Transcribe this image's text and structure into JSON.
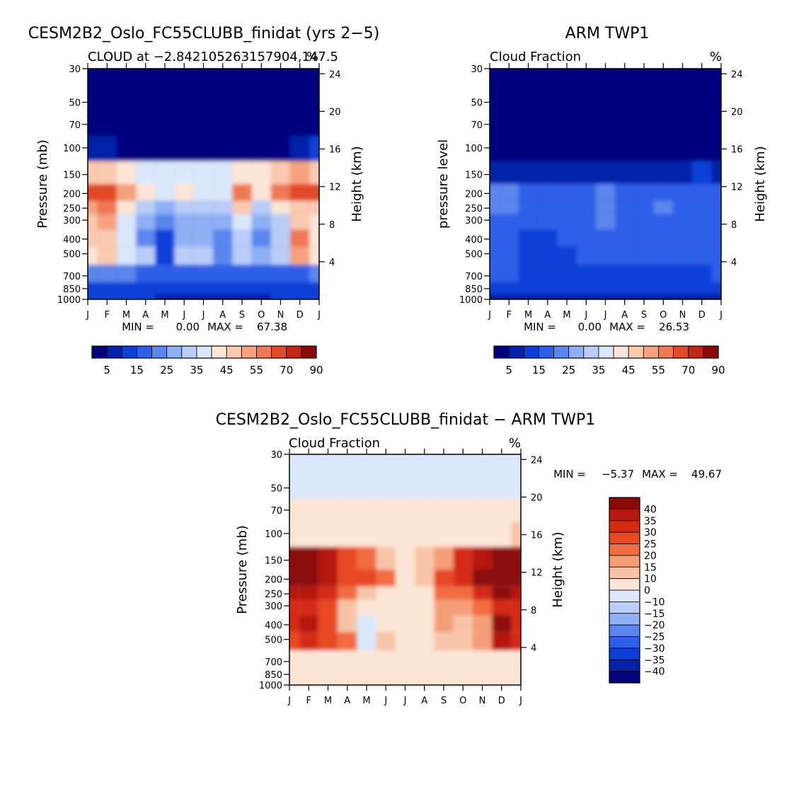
{
  "figure_title": "",
  "colorbar_fill_ticks": [
    "5",
    "15",
    "25",
    "35",
    "45",
    "55",
    "70",
    "90"
  ],
  "colorbar_diff_ticks": [
    "40",
    "35",
    "30",
    "25",
    "20",
    "15",
    "10",
    "0",
    "−10",
    "−15",
    "−20",
    "−25",
    "−30",
    "−35",
    "−40"
  ],
  "colors": {
    "fill_palette": [
      "#00007f",
      "#0021a8",
      "#0a3fd8",
      "#2d5fe8",
      "#5a86ee",
      "#8fb0f4",
      "#b9cdf8",
      "#dbe8fb",
      "#fde6d6",
      "#fbc9b0",
      "#f6a27e",
      "#f07852",
      "#e24a28",
      "#c42812",
      "#8b0a07"
    ],
    "diff_palette": [
      "#8b0a07",
      "#b5190b",
      "#d42c12",
      "#e74a23",
      "#f26c3f",
      "#f59f79",
      "#f8c4a7",
      "#fde6d6",
      "#dbe8fb",
      "#b9cdf8",
      "#8fb0f4",
      "#5a86ee",
      "#2d5fe8",
      "#0a3fd8",
      "#0021a8",
      "#00007f"
    ]
  },
  "chart_data": [
    {
      "type": "heatmap",
      "id": "model",
      "title": "CESM2B2_Oslo_FC55CLUBB_finidat (yrs 2−5)",
      "subtitle_left": "CLOUD at −2.842105263157904,147.5",
      "subtitle_right": "%",
      "ylabel": "Pressure (mb)",
      "ylabel_right": "Height (km)",
      "x_ticks": [
        "J",
        "F",
        "M",
        "A",
        "M",
        "J",
        "J",
        "A",
        "S",
        "O",
        "N",
        "D",
        "J"
      ],
      "y_ticks": [
        "30",
        "50",
        "70",
        "100",
        "150",
        "200",
        "250",
        "300",
        "400",
        "500",
        "700",
        "850",
        "1000"
      ],
      "y_ticks_right": [
        "24",
        "20",
        "16",
        "12",
        "8",
        "4"
      ],
      "min_label": "MIN =",
      "min_value": "0.00",
      "max_label": "MAX =",
      "max_value": "67.38",
      "levels": [
        5,
        10,
        15,
        20,
        25,
        30,
        35,
        40,
        45,
        50,
        55,
        60,
        70,
        80,
        90
      ],
      "values": [
        [
          0.5,
          0.5,
          0.5,
          0.5,
          0.5,
          0.5,
          0.5,
          0.5,
          0.5,
          0.5,
          0.5,
          0.5,
          0.5
        ],
        [
          0.5,
          0.5,
          0.5,
          0.5,
          0.5,
          0.5,
          0.5,
          0.5,
          0.5,
          0.5,
          0.5,
          0.5,
          0.5
        ],
        [
          1,
          1,
          1,
          1,
          1,
          1,
          1,
          1,
          1,
          1,
          1,
          1,
          1
        ],
        [
          8,
          6,
          4,
          4,
          3,
          3,
          3,
          3,
          3,
          3,
          4,
          8,
          10
        ],
        [
          45,
          48,
          42,
          38,
          35,
          36,
          36,
          38,
          42,
          40,
          45,
          50,
          48
        ],
        [
          62,
          64,
          52,
          40,
          35,
          42,
          38,
          38,
          58,
          42,
          56,
          62,
          60
        ],
        [
          52,
          55,
          42,
          34,
          28,
          30,
          30,
          32,
          45,
          34,
          40,
          48,
          45
        ],
        [
          48,
          50,
          38,
          28,
          20,
          25,
          25,
          28,
          35,
          26,
          32,
          45,
          40
        ],
        [
          46,
          48,
          36,
          24,
          10,
          28,
          28,
          20,
          32,
          22,
          34,
          56,
          44
        ],
        [
          44,
          46,
          36,
          30,
          14,
          34,
          30,
          22,
          30,
          26,
          34,
          50,
          42
        ],
        [
          22,
          22,
          20,
          18,
          16,
          18,
          18,
          18,
          18,
          18,
          18,
          18,
          20
        ],
        [
          14,
          13,
          12,
          12,
          10,
          10,
          10,
          10,
          10,
          10,
          12,
          13,
          14
        ],
        [
          10,
          10,
          10,
          10,
          8,
          8,
          8,
          8,
          8,
          8,
          10,
          10,
          10
        ]
      ]
    },
    {
      "type": "heatmap",
      "id": "obs",
      "title": "ARM TWP1",
      "subtitle_left": "Cloud Fraction",
      "subtitle_right": "%",
      "ylabel": "pressure level",
      "ylabel_right": "Height (km)",
      "x_ticks": [
        "J",
        "F",
        "M",
        "A",
        "M",
        "J",
        "J",
        "A",
        "S",
        "O",
        "N",
        "D",
        "J"
      ],
      "y_ticks": [
        "30",
        "50",
        "70",
        "100",
        "150",
        "200",
        "250",
        "300",
        "400",
        "500",
        "700",
        "850",
        "1000"
      ],
      "y_ticks_right": [
        "24",
        "20",
        "16",
        "12",
        "8",
        "4"
      ],
      "min_label": "MIN =",
      "min_value": "0.00",
      "max_label": "MAX =",
      "max_value": "26.53",
      "levels": [
        5,
        10,
        15,
        20,
        25,
        30,
        35,
        40,
        45,
        50,
        55,
        60,
        70,
        80,
        90
      ],
      "values": [
        [
          0.5,
          0.5,
          0.5,
          0.5,
          0.5,
          0.5,
          0.5,
          0.5,
          0.5,
          0.5,
          0.5,
          0.5,
          0.5
        ],
        [
          0.5,
          0.5,
          0.5,
          0.5,
          0.5,
          0.5,
          0.5,
          0.5,
          0.5,
          0.5,
          0.5,
          0.5,
          0.5
        ],
        [
          0.5,
          0.5,
          0.5,
          0.5,
          0.5,
          0.5,
          0.5,
          0.5,
          0.5,
          0.5,
          0.5,
          0.5,
          0.5
        ],
        [
          2,
          2,
          2,
          2,
          2,
          2,
          2,
          2,
          2,
          2,
          2,
          3,
          3
        ],
        [
          9,
          8,
          8,
          8,
          6,
          6,
          6,
          7,
          8,
          8,
          9,
          10,
          9
        ],
        [
          21,
          20,
          18,
          16,
          16,
          17,
          22,
          16,
          18,
          16,
          16,
          17,
          18
        ],
        [
          22,
          21,
          18,
          16,
          16,
          17,
          24,
          16,
          18,
          20,
          17,
          16,
          17
        ],
        [
          19,
          18,
          16,
          16,
          16,
          17,
          22,
          16,
          17,
          18,
          16,
          16,
          16
        ],
        [
          16,
          16,
          14,
          12,
          16,
          16,
          16,
          16,
          16,
          16,
          16,
          16,
          16
        ],
        [
          16,
          16,
          13,
          11,
          14,
          16,
          16,
          16,
          15,
          16,
          16,
          16,
          16
        ],
        [
          15,
          15,
          12,
          10,
          12,
          14,
          14,
          12,
          11,
          11,
          11,
          14,
          15
        ],
        [
          13,
          13,
          12,
          10,
          11,
          12,
          12,
          12,
          11,
          11,
          11,
          12,
          13
        ],
        [
          6,
          6,
          6,
          6,
          6,
          6,
          6,
          6,
          6,
          6,
          6,
          6,
          6
        ]
      ]
    },
    {
      "type": "heatmap",
      "id": "diff",
      "title": "CESM2B2_Oslo_FC55CLUBB_finidat − ARM TWP1",
      "subtitle_left": "Cloud Fraction",
      "subtitle_right": "%",
      "ylabel": "Pressure (mb)",
      "ylabel_right": "Height (km)",
      "x_ticks": [
        "J",
        "F",
        "M",
        "A",
        "M",
        "J",
        "J",
        "A",
        "S",
        "O",
        "N",
        "D",
        "J"
      ],
      "y_ticks": [
        "30",
        "50",
        "70",
        "100",
        "150",
        "200",
        "250",
        "300",
        "400",
        "500",
        "700",
        "850",
        "1000"
      ],
      "y_ticks_right": [
        "24",
        "20",
        "16",
        "12",
        "8",
        "4"
      ],
      "min_label": "MIN =",
      "min_value": "−5.37",
      "max_label": "MAX =",
      "max_value": "49.67",
      "levels": [
        -40,
        -35,
        -30,
        -25,
        -20,
        -15,
        -10,
        0,
        10,
        15,
        20,
        25,
        30,
        35,
        40
      ],
      "values": [
        [
          -1,
          -1,
          -1,
          -1,
          -1,
          -1,
          -1,
          -1,
          -1,
          -1,
          -1,
          -1,
          -1
        ],
        [
          -0.5,
          -0.5,
          -0.5,
          -0.5,
          -0.5,
          -0.5,
          -0.5,
          -0.5,
          -0.5,
          -0.5,
          -0.5,
          -0.5,
          -0.5
        ],
        [
          1,
          1,
          1,
          1,
          1,
          1,
          1,
          1,
          1,
          1,
          1,
          1,
          1
        ],
        [
          8,
          6,
          4,
          3,
          3,
          3,
          3,
          3,
          3,
          4,
          5,
          9,
          10
        ],
        [
          40,
          45,
          35,
          26,
          22,
          14,
          8,
          12,
          18,
          30,
          38,
          46,
          42
        ],
        [
          44,
          46,
          38,
          28,
          26,
          20,
          6,
          12,
          28,
          32,
          40,
          48,
          45
        ],
        [
          36,
          38,
          30,
          20,
          12,
          8,
          4,
          8,
          20,
          24,
          32,
          40,
          36
        ],
        [
          30,
          32,
          26,
          14,
          3,
          6,
          6,
          8,
          18,
          16,
          20,
          34,
          30
        ],
        [
          32,
          36,
          26,
          14,
          -3,
          8,
          6,
          6,
          18,
          10,
          16,
          44,
          32
        ],
        [
          28,
          32,
          26,
          20,
          -2,
          14,
          8,
          4,
          12,
          10,
          18,
          38,
          30
        ],
        [
          6,
          6,
          6,
          6,
          2,
          4,
          4,
          4,
          4,
          4,
          4,
          4,
          5
        ],
        [
          2,
          2,
          2,
          2,
          2,
          2,
          2,
          2,
          2,
          2,
          2,
          2,
          2
        ],
        [
          1,
          1,
          1,
          1,
          1,
          1,
          1,
          1,
          1,
          1,
          1,
          1,
          1
        ]
      ]
    }
  ]
}
